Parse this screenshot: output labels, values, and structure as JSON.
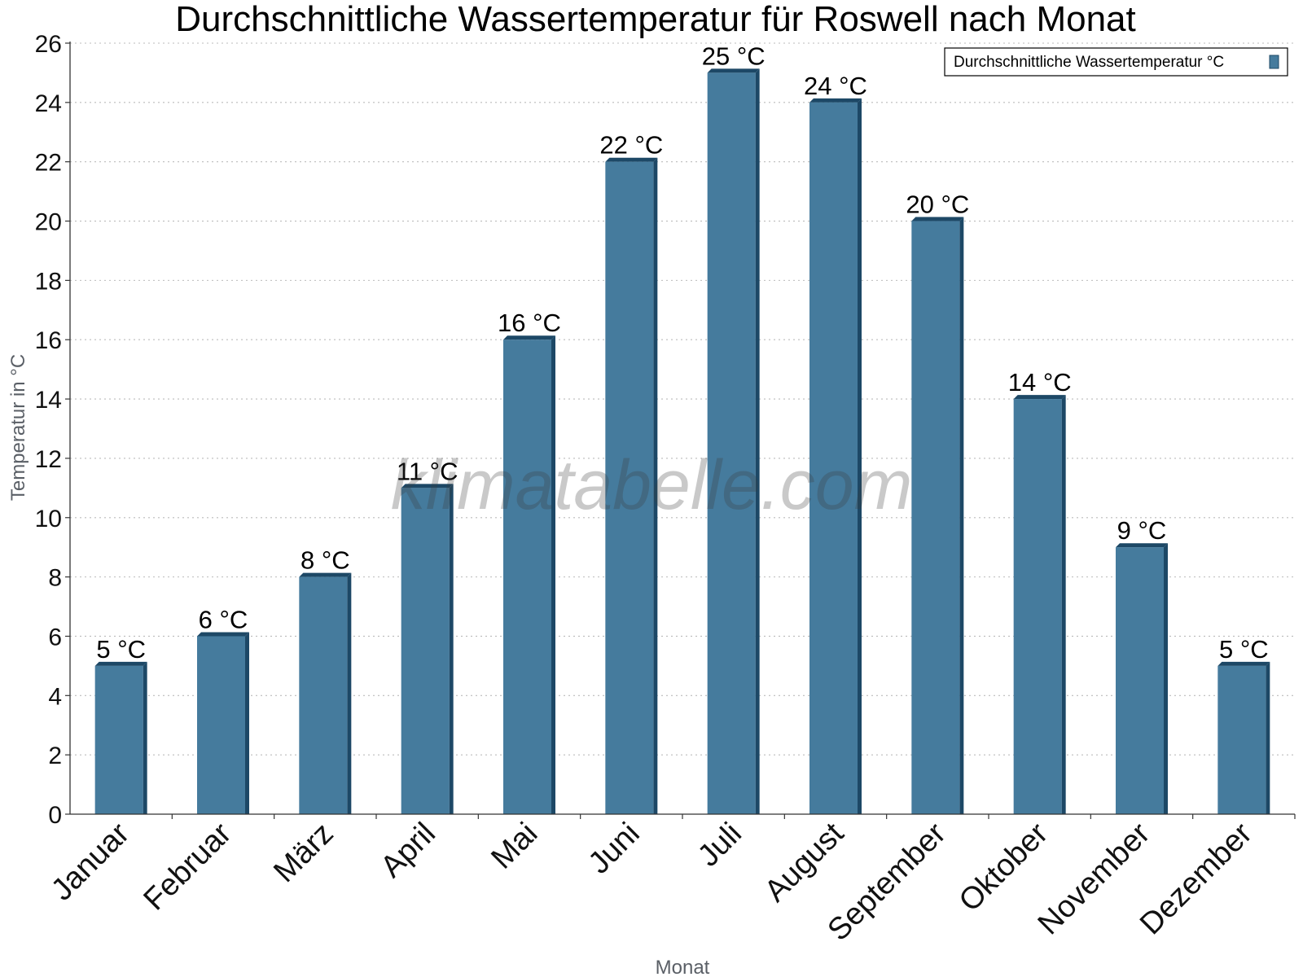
{
  "chart_data": {
    "type": "bar",
    "title": "Durchschnittliche Wassertemperatur für Roswell nach Monat",
    "xlabel": "Monat",
    "ylabel": "Temperatur in °C",
    "ylim": [
      0,
      26
    ],
    "yticks": [
      0,
      2,
      4,
      6,
      8,
      10,
      12,
      14,
      16,
      18,
      20,
      22,
      24,
      26
    ],
    "grid": true,
    "legend_position": "top-right",
    "categories": [
      "Januar",
      "Februar",
      "März",
      "April",
      "Mai",
      "Juni",
      "Juli",
      "August",
      "September",
      "Oktober",
      "November",
      "Dezember"
    ],
    "series": [
      {
        "name": "Durchschnittliche Wassertemperatur °C",
        "values": [
          5,
          6,
          8,
          11,
          16,
          22,
          25,
          24,
          20,
          14,
          9,
          5
        ],
        "labels": [
          "5 °C",
          "6 °C",
          "8 °C",
          "11 °C",
          "16 °C",
          "22 °C",
          "25 °C",
          "24 °C",
          "20 °C",
          "14 °C",
          "9 °C",
          "5 °C"
        ]
      }
    ],
    "colors": {
      "bar": "#457b9d",
      "bar_dark": "#1d4866"
    },
    "watermark": "klimatabelle.com"
  }
}
